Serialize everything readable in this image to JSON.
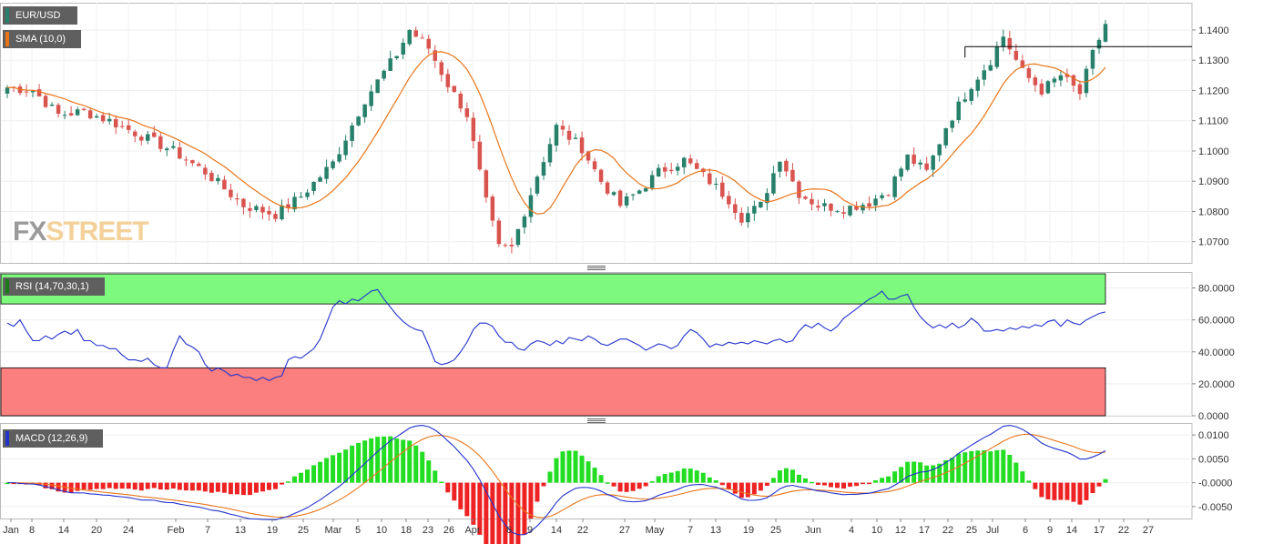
{
  "legend": {
    "price_label": "EUR/USD",
    "price_color": "#26806a",
    "sma_label": "SMA (10,0)",
    "sma_color": "#e8751a",
    "rsi_label": "RSI (14,70,30,1)",
    "rsi_color": "#1a7a1a",
    "macd_label": "MACD (12,26,9)",
    "macd_color": "#2233cc"
  },
  "logo": {
    "fx": "FX",
    "street": "STREET"
  },
  "chart_data": [
    {
      "type": "candlestick",
      "series_name": "EUR/USD",
      "ylim": [
        1.063,
        1.149
      ],
      "y_ticks": [
        "1.1400",
        "1.1300",
        "1.1200",
        "1.1100",
        "1.1000",
        "1.0900",
        "1.0800",
        "1.0700"
      ],
      "up_color": "#26806a",
      "down_color": "#d9534f",
      "overlay_name": "SMA (10,0)",
      "overlay_color": "#e8751a",
      "horizontal_line": {
        "y": 1.1345,
        "x_from_index": 150
      },
      "grid": true
    },
    {
      "type": "line",
      "series_name": "RSI (14,70,30,1)",
      "ylim": [
        0,
        90
      ],
      "y_ticks": [
        "80.0000",
        "60.0000",
        "40.0000",
        "20.0000",
        "0.0000"
      ],
      "overbought": 70,
      "oversold": 30,
      "overbought_color": "#7dfa7d",
      "oversold_color": "#fb7f7f",
      "line_color": "#2233cc",
      "values": [
        58,
        56,
        60,
        53,
        47,
        47,
        50,
        48,
        51,
        53,
        51,
        54,
        47,
        47,
        44,
        44,
        42,
        42,
        38,
        35,
        35,
        34,
        36,
        32,
        30,
        30,
        41,
        50,
        45,
        43,
        40,
        32,
        28,
        30,
        28,
        25,
        26,
        24,
        24,
        22,
        24,
        22,
        24,
        25,
        35,
        37,
        36,
        39,
        42,
        48,
        58,
        68,
        72,
        70,
        73,
        72,
        75,
        78,
        79,
        73,
        68,
        63,
        59,
        56,
        54,
        53,
        44,
        34,
        32,
        33,
        35,
        40,
        46,
        54,
        58,
        58,
        56,
        50,
        46,
        46,
        42,
        41,
        45,
        47,
        46,
        44,
        47,
        45,
        49,
        48,
        47,
        50,
        48,
        45,
        44,
        46,
        48,
        48,
        46,
        44,
        41,
        43,
        45,
        44,
        42,
        44,
        50,
        54,
        52,
        48,
        43,
        45,
        44,
        46,
        45,
        46,
        45,
        47,
        46,
        45,
        47,
        48,
        46,
        47,
        53,
        57,
        55,
        58,
        55,
        53,
        56,
        61,
        64,
        67,
        70,
        73,
        75,
        78,
        73,
        73,
        75,
        76,
        68,
        62,
        58,
        55,
        57,
        55,
        58,
        55,
        57,
        61,
        58,
        53,
        53,
        54,
        53,
        55,
        54,
        56,
        55,
        57,
        56,
        59,
        60,
        56,
        60,
        58,
        57,
        60,
        62,
        64,
        65
      ],
      "grid": true
    },
    {
      "type": "macd",
      "series_name": "MACD (12,26,9)",
      "ylim": [
        -0.0075,
        0.0125
      ],
      "y_ticks": [
        "0.0100",
        "0.0050",
        "-0.0000",
        "-0.0050"
      ],
      "macd_color": "#2233cc",
      "signal_color": "#e8751a",
      "hist_pos_color": "#22dd22",
      "hist_neg_color": "#ee2222",
      "grid": true
    }
  ],
  "x_axis": {
    "labels": [
      "Jan",
      "8",
      "14",
      "20",
      "24",
      "Feb",
      "7",
      "13",
      "19",
      "25",
      "Mar",
      "5",
      "10",
      "18",
      "23",
      "26",
      "Apr",
      "6",
      "9",
      "14",
      "22",
      "27",
      "May",
      "7",
      "13",
      "19",
      "25",
      "Jun",
      "4",
      "10",
      "12",
      "17",
      "22",
      "25",
      "Jul",
      "6",
      "9",
      "14",
      "17",
      "22",
      "27"
    ],
    "positions": [
      12,
      35,
      70,
      106,
      141,
      193,
      228,
      264,
      299,
      333,
      366,
      393,
      419,
      446,
      470,
      493,
      519,
      559,
      582,
      611,
      640,
      686,
      719,
      758,
      786,
      822,
      852,
      893,
      935,
      963,
      989,
      1015,
      1041,
      1067,
      1090,
      1126,
      1153,
      1177,
      1207,
      1234,
      1261
    ]
  }
}
